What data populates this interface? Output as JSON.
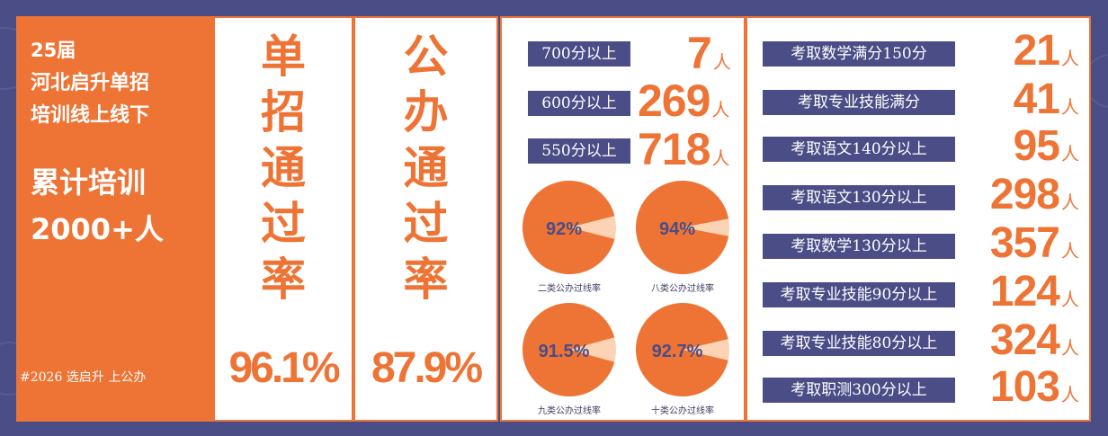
{
  "left": {
    "line1": "25届",
    "line2": "河北启升单招",
    "line3": "培训线上线下",
    "line4": "累计培训",
    "line5": "2000+人",
    "footer": "#2026 选启升 上公办"
  },
  "single": {
    "chars": [
      "单",
      "招",
      "通",
      "过",
      "率"
    ],
    "pct": "96.1%"
  },
  "public": {
    "chars": [
      "公",
      "办",
      "通",
      "过",
      "率"
    ],
    "pct": "87.9%"
  },
  "scores": [
    {
      "label": "700分以上",
      "count": "7",
      "unit": "人"
    },
    {
      "label": "600分以上",
      "count": "269",
      "unit": "人"
    },
    {
      "label": "550分以上",
      "count": "718",
      "unit": "人"
    }
  ],
  "pies": [
    {
      "pct": "92%",
      "value": 92,
      "caption": "二类公办过线率"
    },
    {
      "pct": "94%",
      "value": 94,
      "caption": "八类公办过线率"
    },
    {
      "pct": "91.5%",
      "value": 91.5,
      "caption": "九类公办过线率"
    },
    {
      "pct": "92.7%",
      "value": 92.7,
      "caption": "十类公办过线率"
    }
  ],
  "achievements": [
    {
      "label": "考取数学满分150分",
      "count": "21",
      "unit": "人"
    },
    {
      "label": "考取专业技能满分",
      "count": "41",
      "unit": "人"
    },
    {
      "label": "考取语文140分以上",
      "count": "95",
      "unit": "人"
    },
    {
      "label": "考取语文130分以上",
      "count": "298",
      "unit": "人"
    },
    {
      "label": "考取数学130分以上",
      "count": "357",
      "unit": "人"
    },
    {
      "label": "考取专业技能90分以上",
      "count": "124",
      "unit": "人"
    },
    {
      "label": "考取专业技能80分以上",
      "count": "324",
      "unit": "人"
    },
    {
      "label": "考取职测300分以上",
      "count": "103",
      "unit": "人"
    }
  ],
  "colors": {
    "orange": "#ee7436",
    "navy": "#4a4d86",
    "peach": "#fcd3b4"
  }
}
